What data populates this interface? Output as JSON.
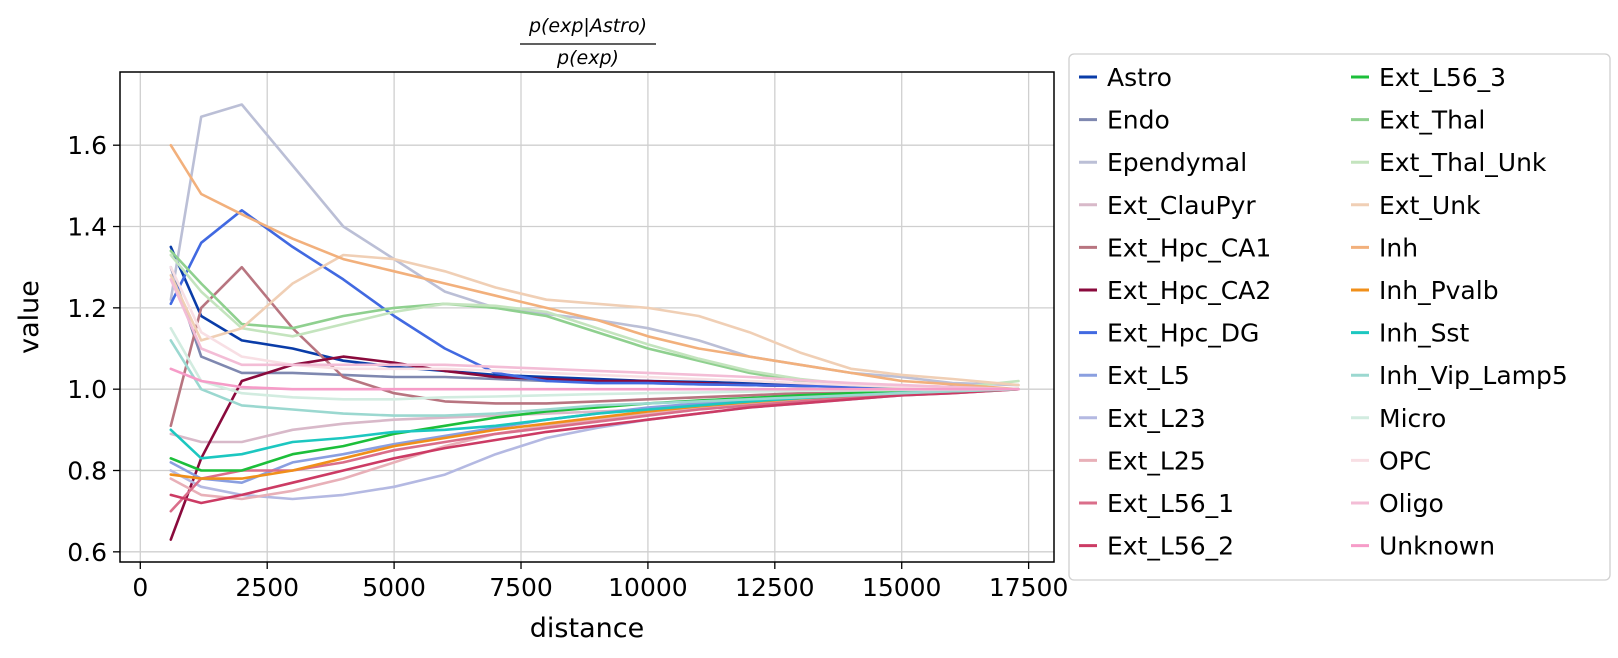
{
  "chart_data": {
    "type": "line",
    "title_numerator": "p(exp|Astro)",
    "title_denominator": "p(exp)",
    "xlabel": "distance",
    "ylabel": "value",
    "xlim": [
      -400,
      18000
    ],
    "ylim": [
      0.575,
      1.78
    ],
    "xticks": [
      0,
      2500,
      5000,
      7500,
      10000,
      12500,
      15000,
      17500
    ],
    "yticks": [
      0.6,
      0.8,
      1.0,
      1.2,
      1.4,
      1.6
    ],
    "grid": true,
    "legend_position": "outside right, two columns",
    "x": [
      600,
      1200,
      2000,
      3000,
      4000,
      5000,
      6000,
      7000,
      8000,
      9000,
      10000,
      11000,
      12000,
      13000,
      14000,
      15000,
      16000,
      17300
    ],
    "series": [
      {
        "name": "Astro",
        "color": "#0a3ca8",
        "values": [
          1.35,
          1.18,
          1.12,
          1.1,
          1.07,
          1.055,
          1.045,
          1.035,
          1.03,
          1.025,
          1.02,
          1.018,
          1.015,
          1.012,
          1.01,
          1.008,
          1.005,
          1.0
        ]
      },
      {
        "name": "Endo",
        "color": "#7f88b0",
        "values": [
          1.3,
          1.08,
          1.04,
          1.04,
          1.035,
          1.03,
          1.03,
          1.025,
          1.02,
          1.02,
          1.015,
          1.012,
          1.01,
          1.008,
          1.006,
          1.004,
          1.002,
          1.0
        ]
      },
      {
        "name": "Ependymal",
        "color": "#bbbfd6",
        "values": [
          1.22,
          1.67,
          1.7,
          1.55,
          1.4,
          1.32,
          1.24,
          1.2,
          1.185,
          1.17,
          1.15,
          1.12,
          1.08,
          1.06,
          1.04,
          1.03,
          1.015,
          1.01
        ]
      },
      {
        "name": "Ext_ClauPyr",
        "color": "#d8b9c9",
        "values": [
          0.89,
          0.87,
          0.87,
          0.9,
          0.915,
          0.925,
          0.93,
          0.935,
          0.94,
          0.945,
          0.95,
          0.955,
          0.96,
          0.97,
          0.975,
          0.985,
          0.99,
          1.0
        ]
      },
      {
        "name": "Ext_Hpc_CA1",
        "color": "#b87580",
        "values": [
          0.91,
          1.2,
          1.3,
          1.15,
          1.03,
          0.99,
          0.97,
          0.965,
          0.965,
          0.97,
          0.975,
          0.98,
          0.985,
          0.99,
          0.993,
          0.996,
          0.998,
          1.0
        ]
      },
      {
        "name": "Ext_Hpc_CA2",
        "color": "#8a0a3c",
        "values": [
          0.63,
          0.83,
          1.02,
          1.06,
          1.08,
          1.065,
          1.045,
          1.03,
          1.025,
          1.02,
          1.02,
          1.015,
          1.01,
          1.008,
          1.006,
          1.004,
          1.002,
          1.0
        ]
      },
      {
        "name": "Ext_Hpc_DG",
        "color": "#4169e1",
        "values": [
          1.21,
          1.36,
          1.44,
          1.35,
          1.27,
          1.18,
          1.1,
          1.04,
          1.02,
          1.015,
          1.015,
          1.012,
          1.01,
          1.008,
          1.006,
          1.004,
          1.002,
          1.0
        ]
      },
      {
        "name": "Ext_L5",
        "color": "#8a9fe0",
        "values": [
          0.82,
          0.78,
          0.77,
          0.82,
          0.84,
          0.865,
          0.885,
          0.905,
          0.925,
          0.94,
          0.955,
          0.965,
          0.975,
          0.982,
          0.988,
          0.993,
          0.996,
          1.0
        ]
      },
      {
        "name": "Ext_L23",
        "color": "#b4b9e2",
        "values": [
          0.8,
          0.76,
          0.74,
          0.73,
          0.74,
          0.76,
          0.79,
          0.84,
          0.88,
          0.905,
          0.925,
          0.94,
          0.955,
          0.965,
          0.975,
          0.985,
          0.99,
          1.0
        ]
      },
      {
        "name": "Ext_L25",
        "color": "#e8b0b8",
        "values": [
          0.78,
          0.74,
          0.73,
          0.75,
          0.78,
          0.82,
          0.86,
          0.89,
          0.91,
          0.925,
          0.94,
          0.955,
          0.965,
          0.975,
          0.982,
          0.99,
          0.995,
          1.0
        ]
      },
      {
        "name": "Ext_L56_1",
        "color": "#da6e8a",
        "values": [
          0.7,
          0.78,
          0.8,
          0.8,
          0.82,
          0.85,
          0.87,
          0.89,
          0.905,
          0.92,
          0.935,
          0.95,
          0.96,
          0.97,
          0.98,
          0.988,
          0.994,
          1.0
        ]
      },
      {
        "name": "Ext_L56_2",
        "color": "#cc3b64",
        "values": [
          0.74,
          0.72,
          0.74,
          0.77,
          0.8,
          0.83,
          0.855,
          0.875,
          0.895,
          0.91,
          0.925,
          0.94,
          0.955,
          0.965,
          0.975,
          0.985,
          0.99,
          1.0
        ]
      },
      {
        "name": "Ext_L56_3",
        "color": "#1cbf3a",
        "values": [
          0.83,
          0.8,
          0.8,
          0.84,
          0.86,
          0.89,
          0.91,
          0.93,
          0.945,
          0.955,
          0.965,
          0.972,
          0.978,
          0.985,
          0.99,
          0.994,
          0.997,
          1.0
        ]
      },
      {
        "name": "Ext_Thal",
        "color": "#8fd08f",
        "values": [
          1.34,
          1.26,
          1.16,
          1.15,
          1.18,
          1.2,
          1.21,
          1.2,
          1.18,
          1.14,
          1.1,
          1.07,
          1.04,
          1.02,
          1.01,
          1.005,
          1.002,
          1.0
        ]
      },
      {
        "name": "Ext_Thal_Unk",
        "color": "#c4e4be",
        "values": [
          1.33,
          1.24,
          1.15,
          1.13,
          1.16,
          1.19,
          1.21,
          1.205,
          1.19,
          1.15,
          1.11,
          1.075,
          1.045,
          1.025,
          1.012,
          1.006,
          1.003,
          1.02
        ]
      },
      {
        "name": "Ext_Unk",
        "color": "#f0cfb5",
        "values": [
          1.28,
          1.12,
          1.15,
          1.26,
          1.33,
          1.32,
          1.29,
          1.25,
          1.22,
          1.21,
          1.2,
          1.18,
          1.14,
          1.09,
          1.05,
          1.035,
          1.025,
          1.01
        ]
      },
      {
        "name": "Inh",
        "color": "#f2b07c",
        "values": [
          1.6,
          1.48,
          1.43,
          1.37,
          1.32,
          1.29,
          1.26,
          1.23,
          1.2,
          1.17,
          1.13,
          1.1,
          1.08,
          1.06,
          1.04,
          1.02,
          1.012,
          1.0
        ]
      },
      {
        "name": "Inh_Pvalb",
        "color": "#f08f1a",
        "values": [
          0.79,
          0.78,
          0.78,
          0.8,
          0.83,
          0.86,
          0.88,
          0.9,
          0.915,
          0.93,
          0.945,
          0.958,
          0.968,
          0.977,
          0.985,
          0.991,
          0.995,
          1.0
        ]
      },
      {
        "name": "Inh_Sst",
        "color": "#1cc7c0",
        "values": [
          0.9,
          0.83,
          0.84,
          0.87,
          0.88,
          0.895,
          0.9,
          0.91,
          0.925,
          0.94,
          0.95,
          0.96,
          0.97,
          0.978,
          0.985,
          0.991,
          0.995,
          1.0
        ]
      },
      {
        "name": "Inh_Vip_Lamp5",
        "color": "#9bd8d0",
        "values": [
          1.12,
          1.0,
          0.96,
          0.95,
          0.94,
          0.935,
          0.935,
          0.94,
          0.95,
          0.96,
          0.965,
          0.97,
          0.975,
          0.98,
          0.985,
          0.99,
          0.995,
          1.0
        ]
      },
      {
        "name": "Micro",
        "color": "#d2ece0",
        "values": [
          1.15,
          1.02,
          0.99,
          0.98,
          0.975,
          0.975,
          0.98,
          0.982,
          0.985,
          0.988,
          0.99,
          0.992,
          0.994,
          0.996,
          0.997,
          0.998,
          0.999,
          1.0
        ]
      },
      {
        "name": "OPC",
        "color": "#f8dfe4",
        "values": [
          1.3,
          1.14,
          1.08,
          1.06,
          1.05,
          1.05,
          1.05,
          1.045,
          1.04,
          1.035,
          1.03,
          1.025,
          1.02,
          1.015,
          1.01,
          1.006,
          1.003,
          1.0
        ]
      },
      {
        "name": "Oligo",
        "color": "#f3bdd6",
        "values": [
          1.27,
          1.1,
          1.06,
          1.06,
          1.06,
          1.06,
          1.06,
          1.055,
          1.05,
          1.045,
          1.04,
          1.035,
          1.03,
          1.022,
          1.015,
          1.01,
          1.005,
          1.0
        ]
      },
      {
        "name": "Unknown",
        "color": "#f69cc8",
        "values": [
          1.05,
          1.02,
          1.005,
          1.0,
          1.0,
          1.0,
          1.0,
          1.0,
          1.0,
          1.0,
          1.0,
          1.0,
          1.0,
          1.0,
          1.0,
          1.0,
          1.0,
          1.0
        ]
      }
    ]
  }
}
